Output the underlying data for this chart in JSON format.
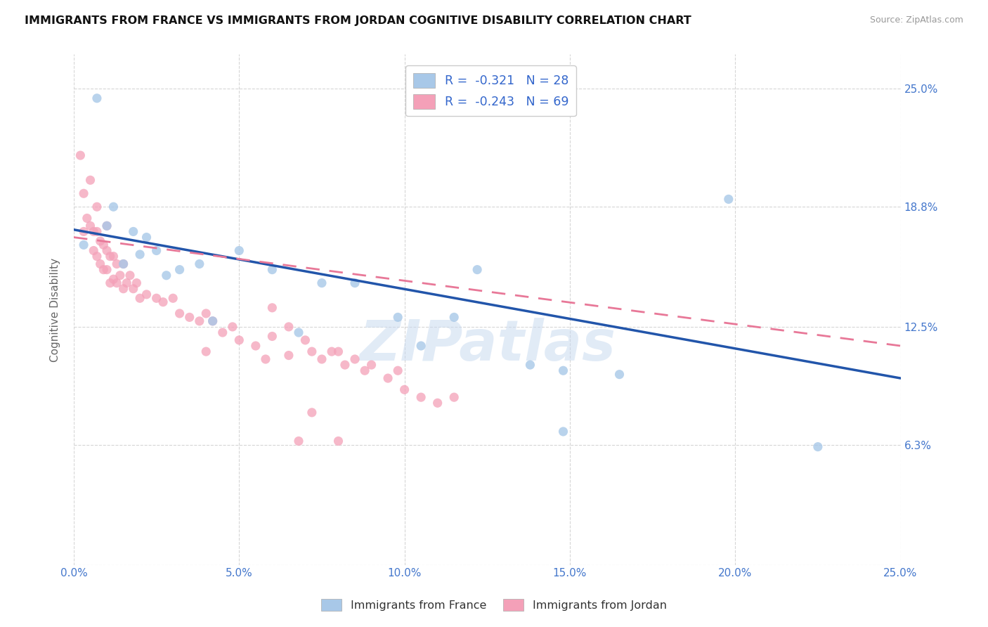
{
  "title": "IMMIGRANTS FROM FRANCE VS IMMIGRANTS FROM JORDAN COGNITIVE DISABILITY CORRELATION CHART",
  "source": "Source: ZipAtlas.com",
  "ylabel": "Cognitive Disability",
  "xmin": 0.0,
  "xmax": 0.25,
  "ymin": 0.0,
  "ymax": 0.268,
  "xtick_vals": [
    0.0,
    0.05,
    0.1,
    0.15,
    0.2,
    0.25
  ],
  "ytick_vals": [
    0.063,
    0.125,
    0.188,
    0.25
  ],
  "france_color": "#a8c8e8",
  "jordan_color": "#f4a0b8",
  "france_line_color": "#2255aa",
  "jordan_line_color": "#e87898",
  "watermark": "ZIPatlas",
  "legend_france_r": "R =  -0.321",
  "legend_france_n": "N = 28",
  "legend_jordan_r": "R =  -0.243",
  "legend_jordan_n": "N = 69",
  "france_x": [
    0.003,
    0.007,
    0.01,
    0.012,
    0.015,
    0.018,
    0.02,
    0.022,
    0.025,
    0.028,
    0.032,
    0.038,
    0.042,
    0.05,
    0.06,
    0.068,
    0.075,
    0.085,
    0.098,
    0.105,
    0.115,
    0.122,
    0.138,
    0.148,
    0.165,
    0.198,
    0.148,
    0.225
  ],
  "france_y": [
    0.168,
    0.245,
    0.178,
    0.188,
    0.158,
    0.175,
    0.163,
    0.172,
    0.165,
    0.152,
    0.155,
    0.158,
    0.128,
    0.165,
    0.155,
    0.122,
    0.148,
    0.148,
    0.13,
    0.115,
    0.13,
    0.155,
    0.105,
    0.102,
    0.1,
    0.192,
    0.07,
    0.062
  ],
  "jordan_x": [
    0.002,
    0.003,
    0.003,
    0.004,
    0.005,
    0.005,
    0.006,
    0.006,
    0.007,
    0.007,
    0.007,
    0.008,
    0.008,
    0.009,
    0.009,
    0.01,
    0.01,
    0.01,
    0.011,
    0.011,
    0.012,
    0.012,
    0.013,
    0.013,
    0.014,
    0.015,
    0.015,
    0.016,
    0.017,
    0.018,
    0.019,
    0.02,
    0.022,
    0.025,
    0.027,
    0.03,
    0.032,
    0.035,
    0.038,
    0.04,
    0.042,
    0.045,
    0.048,
    0.05,
    0.055,
    0.06,
    0.06,
    0.065,
    0.065,
    0.07,
    0.072,
    0.075,
    0.078,
    0.08,
    0.082,
    0.085,
    0.088,
    0.09,
    0.095,
    0.098,
    0.1,
    0.105,
    0.11,
    0.115,
    0.058,
    0.04,
    0.068,
    0.072,
    0.08
  ],
  "jordan_y": [
    0.215,
    0.175,
    0.195,
    0.182,
    0.178,
    0.202,
    0.165,
    0.175,
    0.162,
    0.175,
    0.188,
    0.158,
    0.17,
    0.155,
    0.168,
    0.155,
    0.165,
    0.178,
    0.148,
    0.162,
    0.15,
    0.162,
    0.148,
    0.158,
    0.152,
    0.145,
    0.158,
    0.148,
    0.152,
    0.145,
    0.148,
    0.14,
    0.142,
    0.14,
    0.138,
    0.14,
    0.132,
    0.13,
    0.128,
    0.132,
    0.128,
    0.122,
    0.125,
    0.118,
    0.115,
    0.12,
    0.135,
    0.11,
    0.125,
    0.118,
    0.112,
    0.108,
    0.112,
    0.112,
    0.105,
    0.108,
    0.102,
    0.105,
    0.098,
    0.102,
    0.092,
    0.088,
    0.085,
    0.088,
    0.108,
    0.112,
    0.065,
    0.08,
    0.065
  ],
  "france_trend_x": [
    0.0,
    0.25
  ],
  "france_trend_y": [
    0.175,
    0.098
  ],
  "jordan_trend_x": [
    0.0,
    0.25
  ],
  "jordan_trend_y": [
    0.172,
    0.115
  ]
}
